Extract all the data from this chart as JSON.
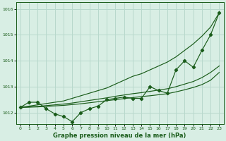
{
  "title": "Graphe pression niveau de la mer (hPa)",
  "bg_color": "#d8eee4",
  "grid_color": "#b8d8cc",
  "line_color": "#1a5c1a",
  "xlim": [
    -0.5,
    23.5
  ],
  "ylim": [
    1011.55,
    1016.25
  ],
  "yticks": [
    1012,
    1013,
    1014,
    1015,
    1016
  ],
  "xticks": [
    0,
    1,
    2,
    3,
    4,
    5,
    6,
    7,
    8,
    9,
    10,
    11,
    12,
    13,
    14,
    15,
    16,
    17,
    18,
    19,
    20,
    21,
    22,
    23
  ],
  "series_main": [
    1012.2,
    1012.4,
    1012.4,
    1012.15,
    1011.95,
    1011.85,
    1011.65,
    1012.0,
    1012.15,
    1012.25,
    1012.5,
    1012.55,
    1012.6,
    1012.55,
    1012.55,
    1013.0,
    1012.85,
    1012.75,
    1013.65,
    1014.0,
    1013.75,
    1014.4,
    1015.0,
    1015.85
  ],
  "series_top": [
    1012.2,
    1012.25,
    1012.3,
    1012.35,
    1012.4,
    1012.45,
    1012.55,
    1012.65,
    1012.75,
    1012.85,
    1012.95,
    1013.1,
    1013.25,
    1013.4,
    1013.5,
    1013.65,
    1013.8,
    1013.95,
    1014.15,
    1014.4,
    1014.65,
    1014.95,
    1015.3,
    1015.85
  ],
  "series_mid1": [
    1012.2,
    1012.22,
    1012.24,
    1012.27,
    1012.3,
    1012.33,
    1012.37,
    1012.42,
    1012.47,
    1012.52,
    1012.57,
    1012.63,
    1012.68,
    1012.73,
    1012.77,
    1012.82,
    1012.87,
    1012.92,
    1013.0,
    1013.1,
    1013.2,
    1013.35,
    1013.55,
    1013.8
  ],
  "series_mid2": [
    1012.2,
    1012.21,
    1012.22,
    1012.24,
    1012.26,
    1012.28,
    1012.31,
    1012.34,
    1012.38,
    1012.42,
    1012.46,
    1012.5,
    1012.54,
    1012.58,
    1012.62,
    1012.65,
    1012.69,
    1012.73,
    1012.8,
    1012.88,
    1012.97,
    1013.08,
    1013.25,
    1013.55
  ]
}
